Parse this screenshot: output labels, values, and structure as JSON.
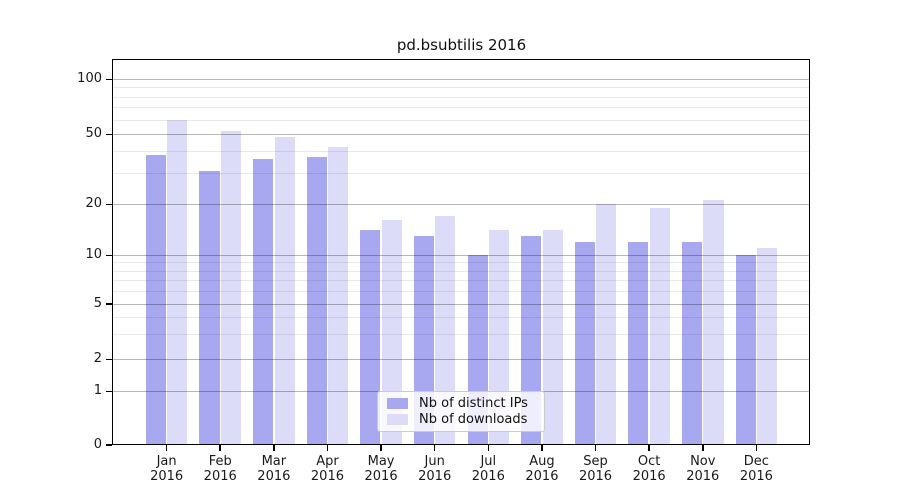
{
  "chart_data": {
    "type": "bar",
    "title": "pd.bsubtilis 2016",
    "categories": [
      "Jan",
      "Feb",
      "Mar",
      "Apr",
      "May",
      "Jun",
      "Jul",
      "Aug",
      "Sep",
      "Oct",
      "Nov",
      "Dec"
    ],
    "x_year": "2016",
    "series": [
      {
        "name": "Nb of distinct IPs",
        "color": "#a8a8f0",
        "values": [
          38,
          31,
          36,
          37,
          14,
          13,
          10,
          13,
          12,
          12,
          12,
          10
        ]
      },
      {
        "name": "Nb of downloads",
        "color": "#dcdcf8",
        "values": [
          60,
          52,
          48,
          42,
          16,
          17,
          14,
          14,
          20,
          19,
          21,
          11
        ]
      }
    ],
    "y_axis": {
      "scale": "symlog",
      "major_ticks": [
        0,
        1,
        2,
        5,
        10,
        20,
        50,
        100
      ],
      "minor_ticks": [
        3,
        4,
        6,
        7,
        8,
        9,
        30,
        40,
        60,
        70,
        80,
        90
      ],
      "ylim": [
        0,
        120
      ]
    },
    "grid": "horizontal",
    "legend": {
      "position": "lower center inside",
      "entries": [
        "Nb of distinct IPs",
        "Nb of downloads"
      ]
    }
  }
}
